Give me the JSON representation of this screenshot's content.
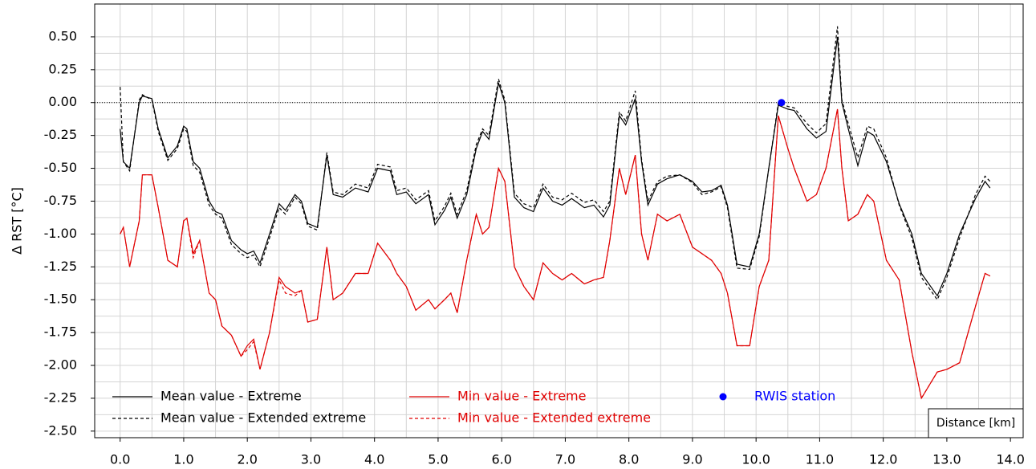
{
  "chart_data": {
    "type": "line",
    "y_label": "Δ RST [°C]",
    "x_label": "Distance [km]",
    "xlim": [
      -0.4,
      14.2
    ],
    "ylim": [
      -2.55,
      0.75
    ],
    "xticks": [
      {
        "value": 0,
        "label": "0.0"
      },
      {
        "value": 1,
        "label": "1.0"
      },
      {
        "value": 2,
        "label": "2.0"
      },
      {
        "value": 3,
        "label": "3.0"
      },
      {
        "value": 4,
        "label": "4.0"
      },
      {
        "value": 5,
        "label": "5.0"
      },
      {
        "value": 6,
        "label": "6.0"
      },
      {
        "value": 7,
        "label": "7.0"
      },
      {
        "value": 8,
        "label": "8.0"
      },
      {
        "value": 9,
        "label": "9.0"
      },
      {
        "value": 10,
        "label": "10.0"
      },
      {
        "value": 11,
        "label": "11.0"
      },
      {
        "value": 12,
        "label": "12.0"
      },
      {
        "value": 13,
        "label": "13.0"
      },
      {
        "value": 14,
        "label": "14.0"
      }
    ],
    "yticks": [
      {
        "value": 0.5,
        "label": "0.50"
      },
      {
        "value": 0.25,
        "label": "0.25"
      },
      {
        "value": 0,
        "label": "0.00"
      },
      {
        "value": -0.25,
        "label": "-0.25"
      },
      {
        "value": -0.5,
        "label": "-0.50"
      },
      {
        "value": -0.75,
        "label": "-0.75"
      },
      {
        "value": -1,
        "label": "-1.00"
      },
      {
        "value": -1.25,
        "label": "-1.25"
      },
      {
        "value": -1.5,
        "label": "-1.50"
      },
      {
        "value": -1.75,
        "label": "-1.75"
      },
      {
        "value": -2,
        "label": "-2.00"
      },
      {
        "value": -2.25,
        "label": "-2.25"
      },
      {
        "value": -2.5,
        "label": "-2.50"
      }
    ],
    "grid": true,
    "reference_line": 0,
    "x": [
      0.0,
      0.05,
      0.15,
      0.3,
      0.35,
      0.5,
      0.6,
      0.75,
      0.9,
      1.0,
      1.05,
      1.15,
      1.25,
      1.4,
      1.5,
      1.6,
      1.75,
      1.9,
      2.0,
      2.1,
      2.2,
      2.35,
      2.5,
      2.6,
      2.75,
      2.85,
      2.95,
      3.1,
      3.25,
      3.35,
      3.5,
      3.7,
      3.9,
      4.05,
      4.25,
      4.35,
      4.5,
      4.65,
      4.85,
      4.95,
      5.1,
      5.2,
      5.3,
      5.45,
      5.6,
      5.7,
      5.8,
      5.95,
      6.05,
      6.2,
      6.35,
      6.5,
      6.65,
      6.8,
      6.95,
      7.1,
      7.3,
      7.45,
      7.6,
      7.7,
      7.85,
      7.95,
      8.1,
      8.2,
      8.3,
      8.45,
      8.6,
      8.8,
      9.0,
      9.15,
      9.3,
      9.45,
      9.55,
      9.7,
      9.9,
      10.05,
      10.2,
      10.35,
      10.5,
      10.6,
      10.8,
      10.95,
      11.1,
      11.28,
      11.35,
      11.45,
      11.6,
      11.75,
      11.85,
      12.05,
      12.25,
      12.45,
      12.6,
      12.85,
      13.0,
      13.2,
      13.45,
      13.6,
      13.68
    ],
    "series": [
      {
        "name": "Mean value - Extreme",
        "color": "#000000",
        "dash": false,
        "values": [
          -0.2,
          -0.45,
          -0.5,
          0.0,
          0.05,
          0.03,
          -0.2,
          -0.42,
          -0.33,
          -0.18,
          -0.2,
          -0.45,
          -0.5,
          -0.75,
          -0.83,
          -0.85,
          -1.05,
          -1.12,
          -1.15,
          -1.13,
          -1.22,
          -1.0,
          -0.77,
          -0.82,
          -0.7,
          -0.75,
          -0.92,
          -0.95,
          -0.4,
          -0.7,
          -0.72,
          -0.65,
          -0.68,
          -0.5,
          -0.52,
          -0.7,
          -0.68,
          -0.77,
          -0.7,
          -0.93,
          -0.82,
          -0.72,
          -0.88,
          -0.7,
          -0.35,
          -0.22,
          -0.28,
          0.15,
          0.0,
          -0.72,
          -0.8,
          -0.83,
          -0.65,
          -0.75,
          -0.78,
          -0.73,
          -0.8,
          -0.78,
          -0.87,
          -0.78,
          -0.1,
          -0.17,
          0.03,
          -0.45,
          -0.78,
          -0.62,
          -0.58,
          -0.55,
          -0.6,
          -0.68,
          -0.67,
          -0.63,
          -0.78,
          -1.23,
          -1.25,
          -1.0,
          -0.5,
          -0.02,
          -0.05,
          -0.06,
          -0.2,
          -0.27,
          -0.22,
          0.5,
          0.0,
          -0.2,
          -0.48,
          -0.22,
          -0.25,
          -0.45,
          -0.77,
          -1.0,
          -1.3,
          -1.47,
          -1.3,
          -1.0,
          -0.73,
          -0.6,
          -0.65
        ]
      },
      {
        "name": "Mean value - Extended extreme",
        "color": "#000000",
        "dash": true,
        "values": [
          0.12,
          -0.45,
          -0.52,
          0.02,
          0.06,
          0.02,
          -0.22,
          -0.44,
          -0.35,
          -0.2,
          -0.22,
          -0.48,
          -0.53,
          -0.78,
          -0.85,
          -0.88,
          -1.08,
          -1.15,
          -1.18,
          -1.16,
          -1.25,
          -1.03,
          -0.8,
          -0.85,
          -0.72,
          -0.77,
          -0.94,
          -0.97,
          -0.38,
          -0.68,
          -0.7,
          -0.62,
          -0.65,
          -0.47,
          -0.49,
          -0.67,
          -0.65,
          -0.74,
          -0.67,
          -0.9,
          -0.79,
          -0.69,
          -0.85,
          -0.67,
          -0.32,
          -0.2,
          -0.25,
          0.18,
          0.02,
          -0.69,
          -0.77,
          -0.8,
          -0.62,
          -0.72,
          -0.74,
          -0.69,
          -0.76,
          -0.74,
          -0.83,
          -0.75,
          -0.07,
          -0.14,
          0.09,
          -0.43,
          -0.75,
          -0.6,
          -0.56,
          -0.55,
          -0.61,
          -0.7,
          -0.68,
          -0.64,
          -0.8,
          -1.26,
          -1.27,
          -1.02,
          -0.5,
          0.0,
          -0.03,
          -0.04,
          -0.16,
          -0.23,
          -0.16,
          0.58,
          0.02,
          -0.16,
          -0.42,
          -0.18,
          -0.2,
          -0.42,
          -0.78,
          -1.03,
          -1.33,
          -1.5,
          -1.33,
          -1.03,
          -0.7,
          -0.56,
          -0.6
        ]
      },
      {
        "name": "Min value - Extreme",
        "color": "#e00000",
        "dash": false,
        "values": [
          -1.0,
          -0.95,
          -1.25,
          -0.9,
          -0.55,
          -0.55,
          -0.8,
          -1.2,
          -1.25,
          -0.9,
          -0.88,
          -1.15,
          -1.05,
          -1.45,
          -1.5,
          -1.7,
          -1.77,
          -1.93,
          -1.85,
          -1.8,
          -2.03,
          -1.75,
          -1.33,
          -1.4,
          -1.45,
          -1.43,
          -1.67,
          -1.65,
          -1.1,
          -1.5,
          -1.45,
          -1.3,
          -1.3,
          -1.07,
          -1.2,
          -1.3,
          -1.4,
          -1.58,
          -1.5,
          -1.57,
          -1.5,
          -1.45,
          -1.6,
          -1.2,
          -0.85,
          -1.0,
          -0.95,
          -0.5,
          -0.6,
          -1.25,
          -1.4,
          -1.5,
          -1.22,
          -1.3,
          -1.35,
          -1.3,
          -1.38,
          -1.35,
          -1.33,
          -1.05,
          -0.5,
          -0.7,
          -0.4,
          -1.0,
          -1.2,
          -0.85,
          -0.9,
          -0.85,
          -1.1,
          -1.15,
          -1.2,
          -1.3,
          -1.45,
          -1.85,
          -1.85,
          -1.4,
          -1.2,
          -0.1,
          -0.35,
          -0.5,
          -0.75,
          -0.7,
          -0.5,
          -0.05,
          -0.5,
          -0.9,
          -0.85,
          -0.7,
          -0.75,
          -1.2,
          -1.35,
          -1.9,
          -2.25,
          -2.05,
          -2.03,
          -1.98,
          -1.55,
          -1.3,
          -1.32
        ]
      },
      {
        "name": "Min value - Extended extreme",
        "color": "#e00000",
        "dash": true,
        "values": [
          -1.0,
          -0.95,
          -1.25,
          -0.9,
          -0.55,
          -0.55,
          -0.8,
          -1.2,
          -1.25,
          -0.9,
          -0.88,
          -1.18,
          -1.05,
          -1.45,
          -1.5,
          -1.7,
          -1.77,
          -1.93,
          -1.88,
          -1.82,
          -2.03,
          -1.75,
          -1.35,
          -1.45,
          -1.47,
          -1.43,
          -1.67,
          -1.65,
          -1.1,
          -1.5,
          -1.45,
          -1.3,
          -1.3,
          -1.07,
          -1.2,
          -1.3,
          -1.4,
          -1.58,
          -1.5,
          -1.57,
          -1.5,
          -1.45,
          -1.6,
          -1.2,
          -0.85,
          -1.0,
          -0.95,
          -0.5,
          -0.6,
          -1.25,
          -1.4,
          -1.5,
          -1.22,
          -1.3,
          -1.35,
          -1.3,
          -1.38,
          -1.35,
          -1.33,
          -1.05,
          -0.5,
          -0.7,
          -0.4,
          -1.0,
          -1.2,
          -0.85,
          -0.9,
          -0.85,
          -1.1,
          -1.15,
          -1.2,
          -1.3,
          -1.45,
          -1.85,
          -1.85,
          -1.4,
          -1.2,
          -0.1,
          -0.35,
          -0.5,
          -0.75,
          -0.7,
          -0.5,
          -0.05,
          -0.5,
          -0.9,
          -0.85,
          -0.7,
          -0.75,
          -1.2,
          -1.35,
          -1.9,
          -2.25,
          -2.05,
          -2.03,
          -1.98,
          -1.55,
          -1.3,
          -1.32
        ]
      }
    ],
    "points": {
      "name": "RWIS station",
      "color": "#0000ff",
      "x": [
        10.4
      ],
      "values": [
        0
      ]
    }
  }
}
